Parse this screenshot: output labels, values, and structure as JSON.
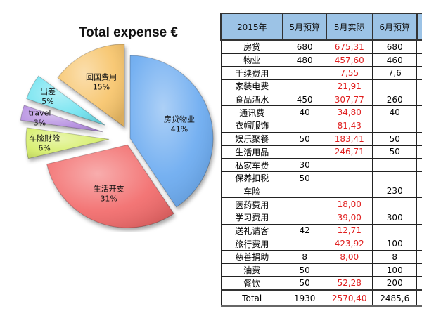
{
  "chart_data": {
    "type": "pie",
    "title": "Total expense €",
    "slices": [
      {
        "label": "房贷物业",
        "value": 41,
        "display": "41%",
        "color": "#6aaaf0"
      },
      {
        "label": "生活开支",
        "value": 31,
        "display": "31%",
        "color": "#f26a6a"
      },
      {
        "label": "车险财险",
        "value": 6,
        "display": "6%",
        "color": "#d6ee6a"
      },
      {
        "label": "travel",
        "value": 3,
        "display": "3%",
        "color": "#b48de0"
      },
      {
        "label": "出差",
        "value": 5,
        "display": "5%",
        "color": "#6fe3f0"
      },
      {
        "label": "回国费用",
        "value": 15,
        "display": "15%",
        "color": "#f7c46a"
      }
    ]
  },
  "table": {
    "headers": [
      "2015年",
      "5月预算",
      "5月实际",
      "6月预算"
    ],
    "rows": [
      {
        "cat": "房贷",
        "b5": "680",
        "a5": "675,31",
        "b6": "680"
      },
      {
        "cat": "物业",
        "b5": "480",
        "a5": "457,60",
        "b6": "460"
      },
      {
        "cat": "手续费用",
        "b5": "",
        "a5": "7,55",
        "b6": "7,6"
      },
      {
        "cat": "家装电费",
        "b5": "",
        "a5": "21,91",
        "b6": ""
      },
      {
        "cat": "食品酒水",
        "b5": "450",
        "a5": "307,77",
        "b6": "260"
      },
      {
        "cat": "通讯费",
        "b5": "40",
        "a5": "34,80",
        "b6": "40"
      },
      {
        "cat": "衣帽服饰",
        "b5": "",
        "a5": "81,43",
        "b6": ""
      },
      {
        "cat": "娱乐聚餐",
        "b5": "50",
        "a5": "183,41",
        "b6": "50"
      },
      {
        "cat": "生活用品",
        "b5": "",
        "a5": "246,71",
        "b6": "50"
      },
      {
        "cat": "私家车费",
        "b5": "30",
        "a5": "",
        "b6": ""
      },
      {
        "cat": "保养扣税",
        "b5": "50",
        "a5": "",
        "b6": ""
      },
      {
        "cat": "车险",
        "b5": "",
        "a5": "",
        "b6": "230"
      },
      {
        "cat": "医药费用",
        "b5": "",
        "a5": "18,00",
        "b6": ""
      },
      {
        "cat": "学习费用",
        "b5": "",
        "a5": "39,00",
        "b6": "300"
      },
      {
        "cat": "送礼请客",
        "b5": "42",
        "a5": "12,71",
        "b6": ""
      },
      {
        "cat": "旅行费用",
        "b5": "",
        "a5": "423,92",
        "b6": "100"
      },
      {
        "cat": "慈善捐助",
        "b5": "8",
        "a5": "8,00",
        "b6": "8"
      },
      {
        "cat": "油费",
        "b5": "50",
        "a5": "",
        "b6": "100"
      },
      {
        "cat": "餐饮",
        "b5": "50",
        "a5": "52,28",
        "b6": "200"
      }
    ],
    "total": {
      "cat": "Total",
      "b5": "1930",
      "a5": "2570,40",
      "b6": "2485,6"
    }
  }
}
